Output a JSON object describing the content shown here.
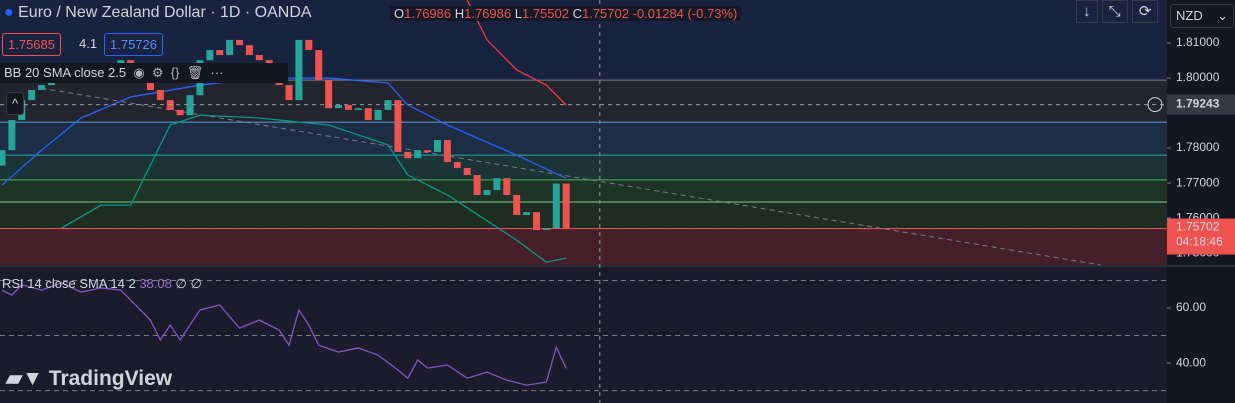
{
  "chart_data": {
    "type": "candlestick",
    "title": "Euro / New Zealand Dollar · 1D · OANDA",
    "ohlc": {
      "O": 1.76986,
      "H": 1.76986,
      "L": 1.75502,
      "C": 1.75702,
      "change": "-0.01284 (-0.73%)"
    },
    "bid": 1.75685,
    "spread": 4.1,
    "ask": 1.75726,
    "indicator": "BB 20 SMA close 2.5",
    "currency": "NZD",
    "brand": "TradingView",
    "up_color": "#26a69a",
    "down_color": "#ef5350",
    "xlim": [
      -0.2,
      117.7
    ],
    "ylim": [
      1.7466,
      1.8223
    ],
    "yticks": [
      {
        "value": 1.81,
        "label": "1.81000"
      },
      {
        "value": 1.8,
        "label": "1.80000"
      },
      {
        "value": 1.78,
        "label": "1.78000"
      },
      {
        "value": 1.77,
        "label": "1.77000"
      },
      {
        "value": 1.76,
        "label": "1.76000"
      },
      {
        "value": 1.75,
        "label": "1.75000"
      }
    ],
    "open": [
      1.775,
      1.7794,
      1.788,
      1.7937,
      1.7966,
      1.798,
      1.7994,
      1.8009,
      1.8023,
      1.8037,
      1.8023,
      1.8017,
      1.8037,
      1.8051,
      1.8023,
      1.7994,
      1.7966,
      1.7937,
      1.7909,
      1.7894,
      1.7951,
      1.8051,
      1.808,
      1.8066,
      1.8109,
      1.8094,
      1.8066,
      1.8051,
      1.8023,
      1.798,
      1.7937,
      1.8109,
      1.808,
      1.7994,
      1.7914,
      1.7923,
      1.7909,
      1.7914,
      1.788,
      1.7909,
      1.7937,
      1.7789,
      1.7771,
      1.7794,
      1.7789,
      1.7823,
      1.776,
      1.7743,
      1.7723,
      1.7666,
      1.768,
      1.7714,
      1.7666,
      1.7609,
      1.7617,
      1.7566,
      1.7571,
      1.76986
    ],
    "close": [
      1.7794,
      1.788,
      1.7937,
      1.7966,
      1.798,
      1.7994,
      1.8009,
      1.8023,
      1.8037,
      1.8023,
      1.8017,
      1.8037,
      1.8051,
      1.8023,
      1.7994,
      1.7966,
      1.7937,
      1.7909,
      1.7894,
      1.7951,
      1.8051,
      1.808,
      1.8066,
      1.8109,
      1.8094,
      1.8066,
      1.8051,
      1.8023,
      1.798,
      1.7937,
      1.8109,
      1.808,
      1.7994,
      1.7914,
      1.7923,
      1.7909,
      1.7914,
      1.788,
      1.7909,
      1.7937,
      1.7789,
      1.7771,
      1.7794,
      1.7789,
      1.7823,
      1.776,
      1.7743,
      1.7723,
      1.7666,
      1.768,
      1.7714,
      1.7666,
      1.7609,
      1.7617,
      1.7566,
      1.7571,
      1.76986,
      1.75702
    ],
    "bollinger": [
      {
        "color": "#2962ff",
        "x": [
          0,
          4,
          8,
          13,
          20,
          26,
          33,
          39,
          41,
          45,
          52,
          57
        ],
        "values": [
          1.7694,
          1.7794,
          1.7886,
          1.7946,
          1.798,
          1.8,
          1.8,
          1.7986,
          1.7923,
          1.7866,
          1.778,
          1.7714
        ]
      },
      {
        "color": "#f23645",
        "x": [
          47,
          49,
          52,
          55,
          57
        ],
        "values": [
          1.8223,
          1.8109,
          1.8023,
          1.798,
          1.7923
        ]
      },
      {
        "color": "#089981",
        "x": [
          6,
          10,
          13,
          17,
          20,
          26,
          33,
          39,
          41,
          45,
          52,
          55,
          57
        ],
        "values": [
          1.7571,
          1.7637,
          1.7637,
          1.7866,
          1.7894,
          1.7886,
          1.7866,
          1.7809,
          1.7723,
          1.7666,
          1.7537,
          1.7474,
          1.7486
        ]
      }
    ],
    "levels": [
      {
        "value": 1.7994,
        "color": "#787b86",
        "fill": "#22252f"
      },
      {
        "value": 1.7874,
        "color": "#5d9bc9",
        "fill": "#1d2e44"
      },
      {
        "value": 1.778,
        "color": "#26a69a",
        "fill": "#1b3437"
      },
      {
        "value": 1.7709,
        "color": "#4caf50",
        "fill": "#1c3326"
      },
      {
        "value": 1.7646,
        "color": "#81c784",
        "fill": "#1e2d22"
      },
      {
        "value": 1.757,
        "color": "#ef5350",
        "fill": "#45202a"
      }
    ],
    "trendline": {
      "x": [
        4,
        111
      ],
      "values": [
        1.7971,
        1.7466
      ]
    },
    "crosshair": {
      "x": 60.4,
      "price": 1.79243
    },
    "last_price": 1.75702,
    "countdown": "04:18:46",
    "rsi": {
      "label": "RSI 14 close SMA 14 2",
      "value_text": "38.08",
      "extra": [
        "∅",
        "∅"
      ],
      "color": "#7e57c2",
      "ylim": [
        25.5,
        74.9
      ],
      "yticks": [
        {
          "value": 60,
          "label": "60.00"
        },
        {
          "value": 40,
          "label": "40.00"
        }
      ],
      "bands": [
        70,
        50,
        30
      ],
      "x": [
        0,
        1,
        2,
        4,
        6,
        8,
        10,
        12,
        13,
        15,
        16,
        17,
        18,
        20,
        22,
        24,
        26,
        28,
        29,
        30,
        31,
        32,
        34,
        36,
        38,
        40,
        41,
        42,
        43,
        45,
        47,
        49,
        51,
        53,
        55,
        56,
        57
      ],
      "values": [
        66.5,
        64.7,
        68.4,
        66.5,
        69.1,
        65.8,
        67.3,
        66.5,
        62.9,
        55.6,
        48.4,
        53.8,
        48.4,
        59.3,
        61.1,
        52.7,
        55.6,
        52.0,
        46.5,
        59.3,
        53.8,
        46.5,
        44.0,
        45.5,
        42.9,
        37.5,
        34.5,
        41.1,
        38.2,
        39.3,
        34.5,
        36.7,
        33.8,
        32.0,
        33.1,
        45.8,
        38.08
      ]
    }
  }
}
